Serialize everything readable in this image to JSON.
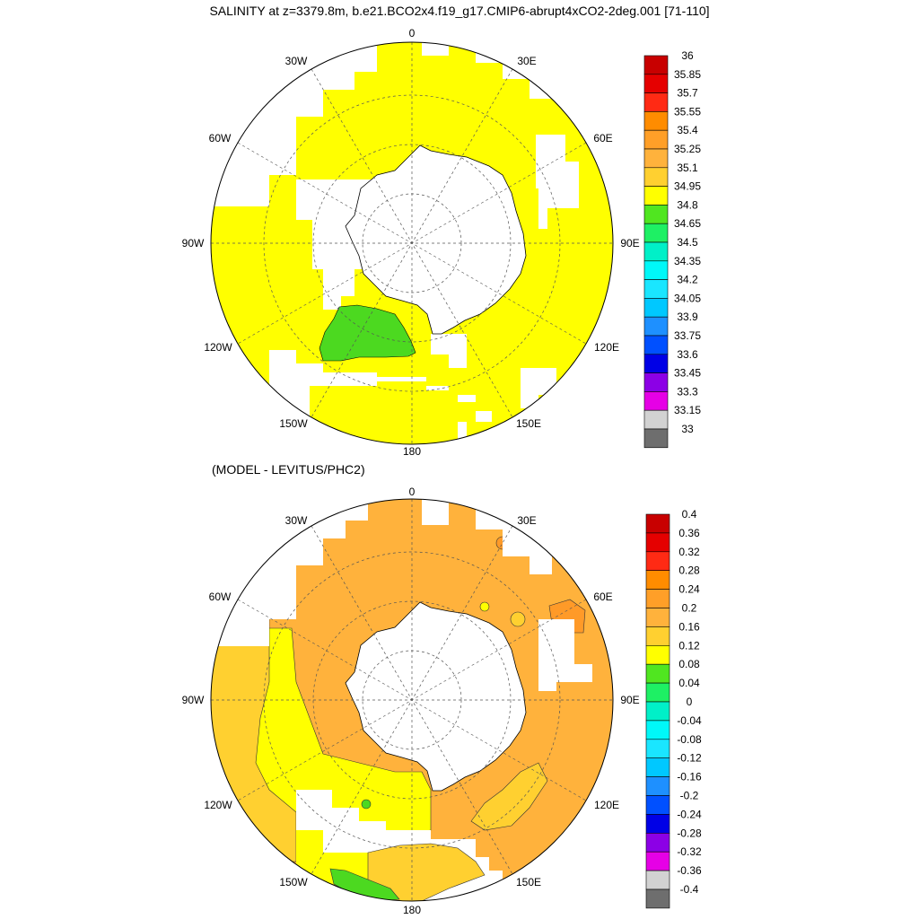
{
  "title": "SALINITY at z=3379.8m, b.e21.BCO2x4.f19_g17.CMIP6-abrupt4xCO2-2deg.001 [71-110]",
  "subtitle": "(MODEL - LEVITUS/PHC2)",
  "lon_labels": {
    "deg0": "0",
    "w30": "30W",
    "e30": "30E",
    "w60": "60W",
    "e60": "60E",
    "w90": "90W",
    "e90": "90E",
    "w120": "120W",
    "e120": "120E",
    "w150": "150W",
    "e150": "150E",
    "deg180": "180"
  },
  "colors": {
    "land": "#ffffff",
    "coast": "#000000",
    "grid": "#555555",
    "yellow": "#ffff00",
    "green": "#4cd920",
    "lightorange": "#ffb23c",
    "amber": "#ffd030",
    "deeporange": "#ff9a28"
  },
  "colorbar_top": {
    "labels": [
      "36",
      "35.85",
      "35.7",
      "35.55",
      "35.4",
      "35.25",
      "35.1",
      "34.95",
      "34.8",
      "34.65",
      "34.5",
      "34.35",
      "34.2",
      "34.05",
      "33.9",
      "33.75",
      "33.6",
      "33.45",
      "33.3",
      "33.15",
      "33"
    ],
    "colors": [
      "#c80000",
      "#e50000",
      "#ff2a14",
      "#ff8c00",
      "#ff9f28",
      "#ffb23c",
      "#ffd030",
      "#ffff00",
      "#50e620",
      "#1ef064",
      "#00f0c8",
      "#00f8f8",
      "#1ae6ff",
      "#00c8ff",
      "#1e90ff",
      "#0050ff",
      "#0000e6",
      "#8c00e6",
      "#e600e6",
      "#d2d2d2",
      "#6e6e6e"
    ]
  },
  "colorbar_bottom": {
    "labels": [
      "0.4",
      "0.36",
      "0.32",
      "0.28",
      "0.24",
      "0.2",
      "0.16",
      "0.12",
      "0.08",
      "0.04",
      "0",
      "-0.04",
      "-0.08",
      "-0.12",
      "-0.16",
      "-0.2",
      "-0.24",
      "-0.28",
      "-0.32",
      "-0.36",
      "-0.4"
    ],
    "colors": [
      "#c80000",
      "#e50000",
      "#ff2a14",
      "#ff8c00",
      "#ff9f28",
      "#ffb23c",
      "#ffd030",
      "#ffff00",
      "#50e620",
      "#1ef064",
      "#00f0c8",
      "#00f8f8",
      "#1ae6ff",
      "#00c8ff",
      "#1e90ff",
      "#0050ff",
      "#0000e6",
      "#8c00e6",
      "#e600e6",
      "#d2d2d2",
      "#6e6e6e"
    ]
  }
}
